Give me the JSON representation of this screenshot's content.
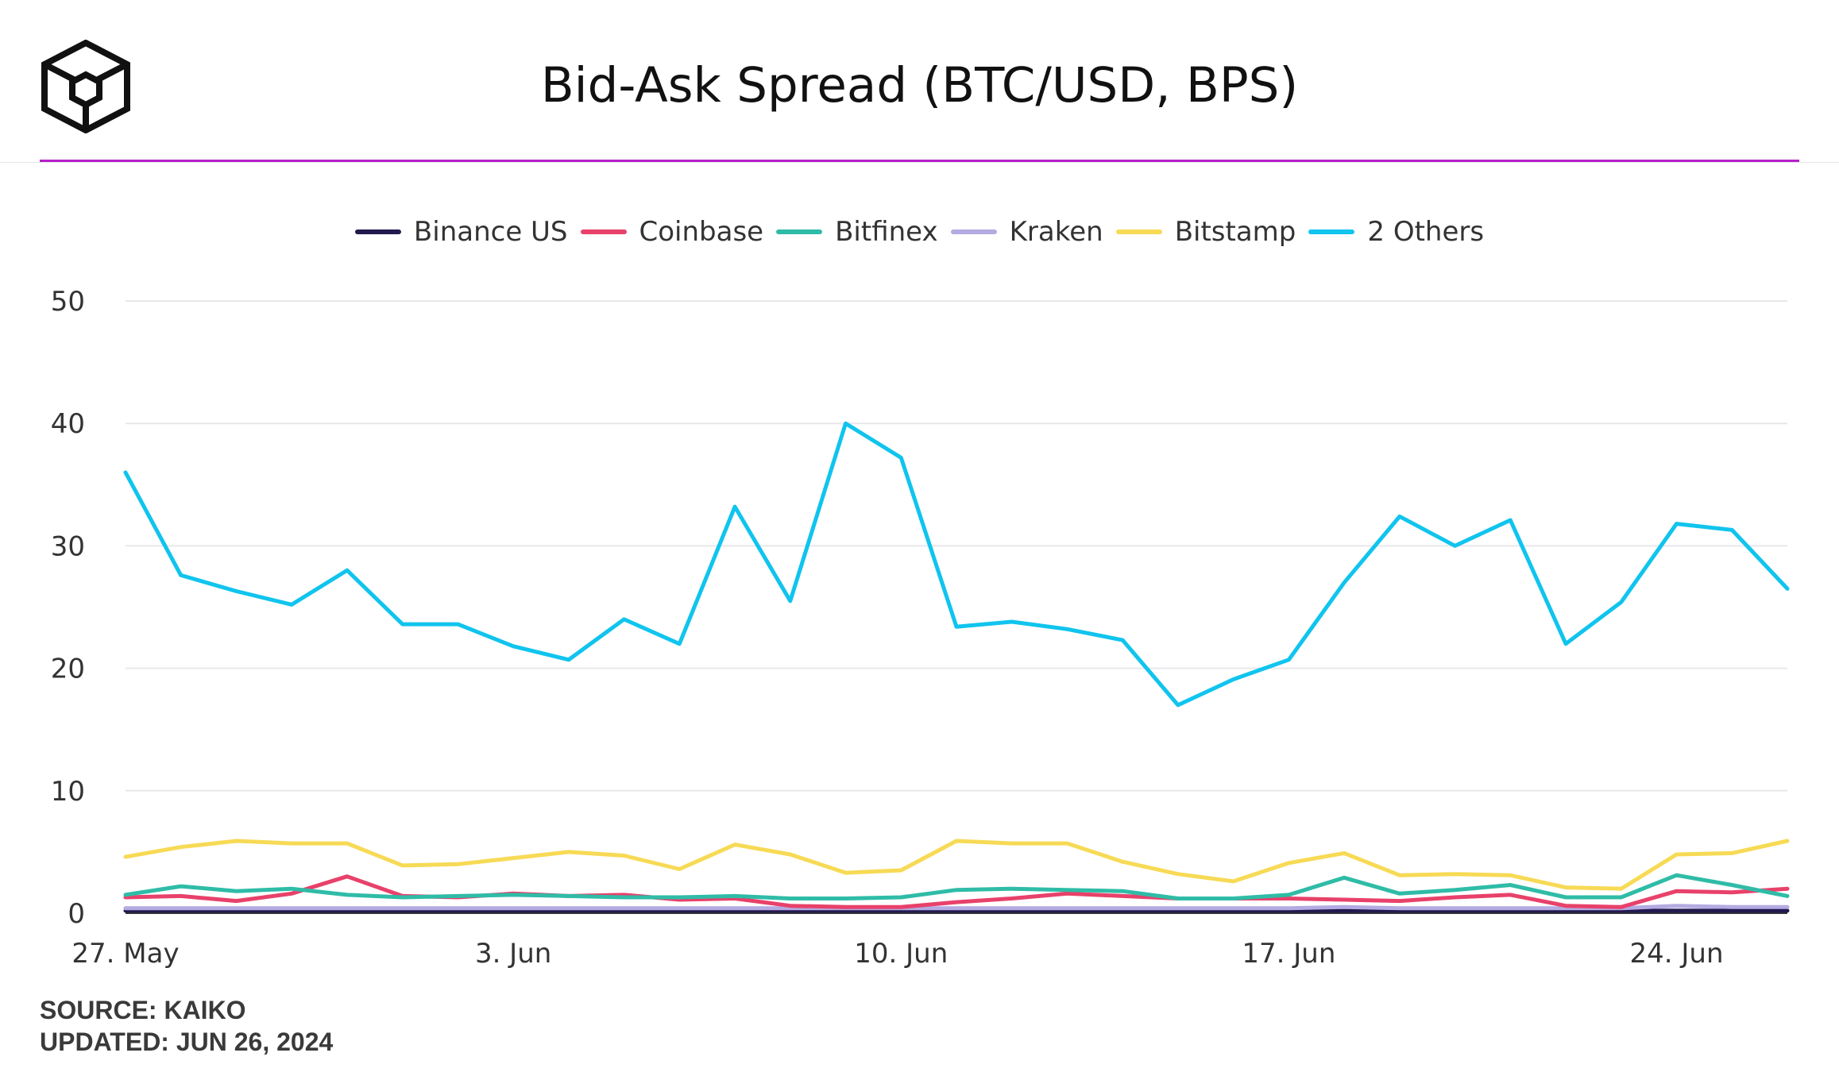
{
  "header": {
    "title": "Bid-Ask Spread (BTC/USD, BPS)"
  },
  "colors": {
    "accent": "#b620c8",
    "grid": "#e8e8ec",
    "axis": "#333333"
  },
  "footer": {
    "source": "SOURCE: KAIKO",
    "updated": "UPDATED: JUN 26, 2024"
  },
  "chart_data": {
    "type": "line",
    "title": "Bid-Ask Spread (BTC/USD, BPS)",
    "xlabel": "",
    "ylabel": "",
    "ylim": [
      0,
      50
    ],
    "yticks": [
      0,
      10,
      20,
      30,
      40,
      50
    ],
    "xlim": [
      "2024-05-27",
      "2024-06-26"
    ],
    "xticks": [
      {
        "x": "2024-05-27",
        "label": "27. May"
      },
      {
        "x": "2024-06-03",
        "label": "3. Jun"
      },
      {
        "x": "2024-06-10",
        "label": "10. Jun"
      },
      {
        "x": "2024-06-17",
        "label": "17. Jun"
      },
      {
        "x": "2024-06-24",
        "label": "24. Jun"
      }
    ],
    "grid": true,
    "legend_position": "top-center",
    "x": [
      "2024-05-27",
      "2024-05-28",
      "2024-05-29",
      "2024-05-30",
      "2024-05-31",
      "2024-06-01",
      "2024-06-02",
      "2024-06-03",
      "2024-06-04",
      "2024-06-05",
      "2024-06-06",
      "2024-06-07",
      "2024-06-08",
      "2024-06-09",
      "2024-06-10",
      "2024-06-11",
      "2024-06-12",
      "2024-06-13",
      "2024-06-14",
      "2024-06-15",
      "2024-06-16",
      "2024-06-17",
      "2024-06-18",
      "2024-06-19",
      "2024-06-20",
      "2024-06-21",
      "2024-06-22",
      "2024-06-23",
      "2024-06-24",
      "2024-06-25",
      "2024-06-26"
    ],
    "series": [
      {
        "name": "Binance US",
        "color": "#23194f",
        "values": [
          0.2,
          0.2,
          0.2,
          0.2,
          0.2,
          0.2,
          0.2,
          0.2,
          0.2,
          0.2,
          0.2,
          0.2,
          0.2,
          0.2,
          0.2,
          0.2,
          0.2,
          0.2,
          0.2,
          0.2,
          0.2,
          0.2,
          0.2,
          0.2,
          0.2,
          0.2,
          0.2,
          0.2,
          0.2,
          0.2,
          0.2
        ]
      },
      {
        "name": "Coinbase",
        "color": "#e8416a",
        "values": [
          1.3,
          1.4,
          1.0,
          1.6,
          3.0,
          1.4,
          1.3,
          1.6,
          1.4,
          1.5,
          1.1,
          1.2,
          0.6,
          0.5,
          0.5,
          0.9,
          1.2,
          1.6,
          1.4,
          1.2,
          1.2,
          1.2,
          1.1,
          1.0,
          1.3,
          1.5,
          0.6,
          0.5,
          1.8,
          1.7,
          2.0
        ]
      },
      {
        "name": "Bitfinex",
        "color": "#2fbca7",
        "values": [
          1.5,
          2.2,
          1.8,
          2.0,
          1.5,
          1.3,
          1.4,
          1.5,
          1.4,
          1.3,
          1.3,
          1.4,
          1.2,
          1.2,
          1.3,
          1.9,
          2.0,
          1.9,
          1.8,
          1.2,
          1.2,
          1.5,
          2.9,
          1.6,
          1.9,
          2.3,
          1.3,
          1.3,
          3.1,
          2.3,
          1.4
        ]
      },
      {
        "name": "Kraken",
        "color": "#b3abe2",
        "values": [
          0.4,
          0.4,
          0.4,
          0.4,
          0.4,
          0.4,
          0.4,
          0.4,
          0.4,
          0.4,
          0.4,
          0.4,
          0.4,
          0.4,
          0.4,
          0.4,
          0.4,
          0.4,
          0.4,
          0.4,
          0.4,
          0.4,
          0.5,
          0.4,
          0.4,
          0.4,
          0.4,
          0.4,
          0.6,
          0.5,
          0.5
        ]
      },
      {
        "name": "Bitstamp",
        "color": "#f7da55",
        "values": [
          4.6,
          5.4,
          5.9,
          5.7,
          5.7,
          3.9,
          4.0,
          4.5,
          5.0,
          4.7,
          3.6,
          5.6,
          4.8,
          3.3,
          3.5,
          5.9,
          5.7,
          5.7,
          4.2,
          3.2,
          2.6,
          4.1,
          4.9,
          3.1,
          3.2,
          3.1,
          2.1,
          2.0,
          4.8,
          4.9,
          5.9
        ]
      },
      {
        "name": "2 Others",
        "color": "#10c4ee",
        "values": [
          36.0,
          27.6,
          26.3,
          25.2,
          28.0,
          23.6,
          23.6,
          21.8,
          20.7,
          24.0,
          22.0,
          33.2,
          25.5,
          40.0,
          37.2,
          23.4,
          23.8,
          23.2,
          22.3,
          17.0,
          19.1,
          20.7,
          27.0,
          32.4,
          30.0,
          32.1,
          22.0,
          25.4,
          31.8,
          31.3,
          26.5
        ]
      }
    ]
  }
}
